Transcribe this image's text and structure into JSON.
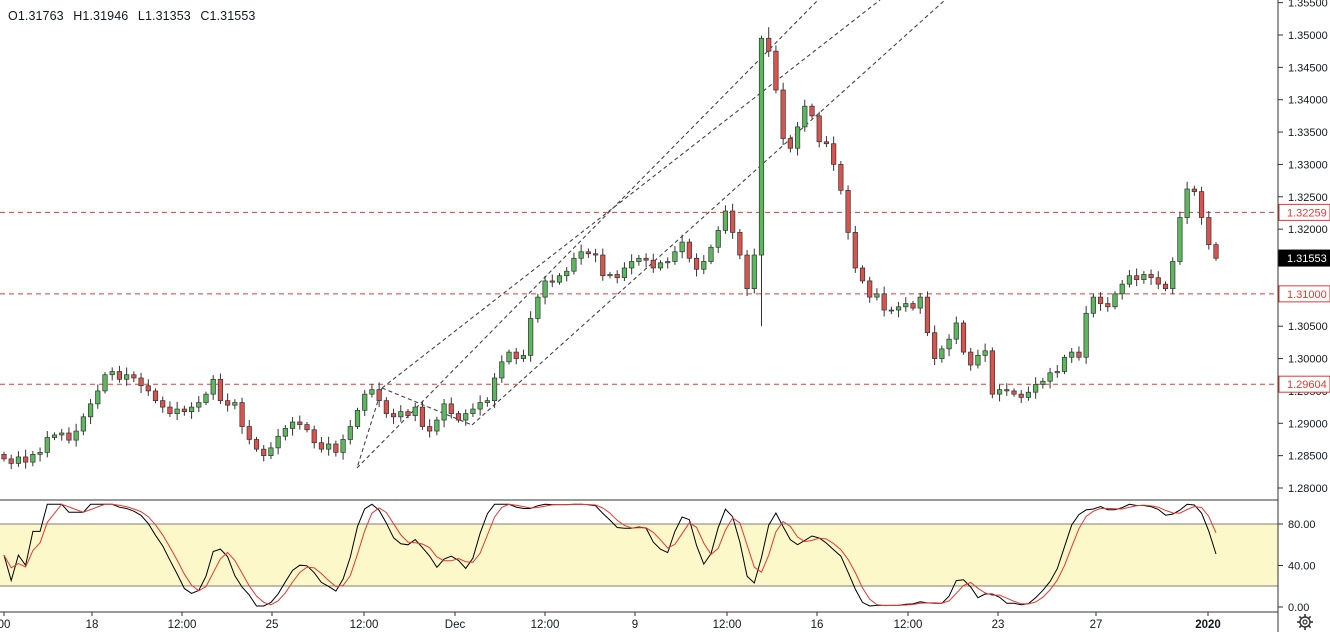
{
  "ohlc": {
    "open": "O1.31763",
    "high": "H1.31946",
    "low": "L1.31353",
    "close": "C1.31553"
  },
  "colors": {
    "up": "#5cb85c",
    "down": "#d9534f",
    "level_line": "#e53935",
    "channel": "#444444",
    "stoch_k": "#000000",
    "stoch_d": "#e53935",
    "stoch_band": "#fdf8c9",
    "last_price_bg": "#000000"
  },
  "axis": {
    "price_ticks": [
      "1.35500",
      "1.35000",
      "1.34500",
      "1.34000",
      "1.33500",
      "1.33000",
      "1.32500",
      "1.32000",
      "1.31500",
      "1.31000",
      "1.30500",
      "1.30000",
      "1.29500",
      "1.29000",
      "1.28500",
      "1.28000"
    ],
    "time_ticks": [
      "00",
      "18",
      "12:00",
      "25",
      "12:00",
      "Dec",
      "12:00",
      "9",
      "12:00",
      "16",
      "12:00",
      "23",
      "27",
      "2020"
    ],
    "stoch_ticks": [
      "80.00",
      "40.00",
      "0.00"
    ]
  },
  "price_labels": {
    "resistance": "1.32259",
    "last": "1.31553",
    "support_mid": "1.31000",
    "support_low": "1.29604"
  },
  "levels": [
    1.32259,
    1.31,
    1.29604
  ],
  "chart_data": {
    "type": "candlestick",
    "ylim": [
      1.2775,
      1.3555
    ],
    "closes": [
      1.2845,
      1.2838,
      1.2848,
      1.284,
      1.2852,
      1.2855,
      1.2878,
      1.2882,
      1.2885,
      1.2874,
      1.2888,
      1.291,
      1.293,
      1.295,
      1.2975,
      1.298,
      1.2968,
      1.2975,
      1.297,
      1.2958,
      1.295,
      1.2935,
      1.2925,
      1.2915,
      1.2922,
      1.2918,
      1.2925,
      1.2932,
      1.2945,
      1.2968,
      1.2935,
      1.2928,
      1.2932,
      1.2895,
      1.2875,
      1.286,
      1.285,
      1.2862,
      1.288,
      1.2892,
      1.2902,
      1.2898,
      1.289,
      1.287,
      1.286,
      1.2868,
      1.2855,
      1.2875,
      1.2895,
      1.292,
      1.2945,
      1.2952,
      1.2935,
      1.2915,
      1.291,
      1.2918,
      1.2912,
      1.2925,
      1.2895,
      1.2888,
      1.2905,
      1.293,
      1.2915,
      1.2905,
      1.2915,
      1.2922,
      1.2932,
      1.2935,
      1.297,
      1.2995,
      1.301,
      1.3,
      1.3005,
      1.3062,
      1.3095,
      1.312,
      1.3118,
      1.3128,
      1.3135,
      1.3155,
      1.3165,
      1.3162,
      1.316,
      1.3128,
      1.313,
      1.3125,
      1.314,
      1.315,
      1.3155,
      1.3152,
      1.314,
      1.3148,
      1.315,
      1.3165,
      1.318,
      1.3155,
      1.3138,
      1.315,
      1.3172,
      1.3198,
      1.3228,
      1.3195,
      1.316,
      1.3108,
      1.316,
      1.3495,
      1.3475,
      1.3415,
      1.334,
      1.3325,
      1.3358,
      1.339,
      1.3375,
      1.3335,
      1.3332,
      1.33,
      1.326,
      1.3195,
      1.314,
      1.312,
      1.3095,
      1.31,
      1.3075,
      1.3075,
      1.308,
      1.3085,
      1.3078,
      1.3095,
      1.304,
      1.3,
      1.3015,
      1.303,
      1.3055,
      1.301,
      1.299,
      1.3005,
      1.3012,
      1.2945,
      1.2952,
      1.295,
      1.2945,
      1.294,
      1.2948,
      1.296,
      1.2965,
      1.2978,
      1.298,
      1.3002,
      1.301,
      1.3002,
      1.307,
      1.3095,
      1.3085,
      1.308,
      1.31,
      1.3115,
      1.3128,
      1.3122,
      1.313,
      1.3125,
      1.3115,
      1.3108,
      1.315,
      1.3218,
      1.3262,
      1.3258,
      1.3218,
      1.3176,
      1.3155
    ]
  }
}
